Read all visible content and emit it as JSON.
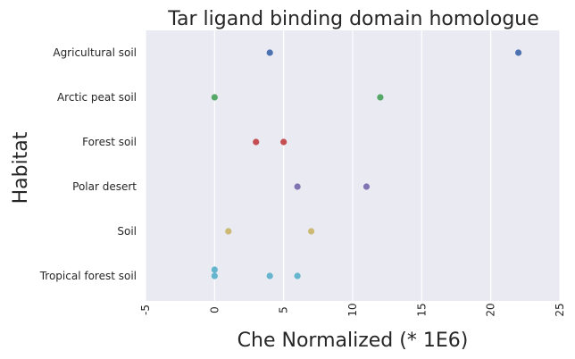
{
  "chart_data": {
    "type": "scatter",
    "title": "Tar ligand binding domain homologue",
    "xlabel": "Che Normalized (* 1E6)",
    "ylabel": "Habitat",
    "xlim": [
      -5,
      25
    ],
    "xticks": [
      "-5",
      "0",
      "5",
      "10",
      "15",
      "20",
      "25"
    ],
    "categories": [
      "Agricultural soil",
      "Arctic peat soil",
      "Forest soil",
      "Polar desert",
      "Soil",
      "Tropical forest soil"
    ],
    "grid": true,
    "series": [
      {
        "category": "Agricultural soil",
        "color": "#4c72b0",
        "x": [
          4,
          22
        ]
      },
      {
        "category": "Arctic peat soil",
        "color": "#55a868",
        "x": [
          0,
          12
        ]
      },
      {
        "category": "Forest soil",
        "color": "#c44e52",
        "x": [
          3,
          5
        ]
      },
      {
        "category": "Polar desert",
        "color": "#8172b2",
        "x": [
          6,
          11
        ]
      },
      {
        "category": "Soil",
        "color": "#ccb974",
        "x": [
          1,
          7
        ]
      },
      {
        "category": "Tropical forest soil",
        "color": "#64b5cd",
        "x": [
          0,
          0,
          4,
          6
        ]
      }
    ]
  }
}
